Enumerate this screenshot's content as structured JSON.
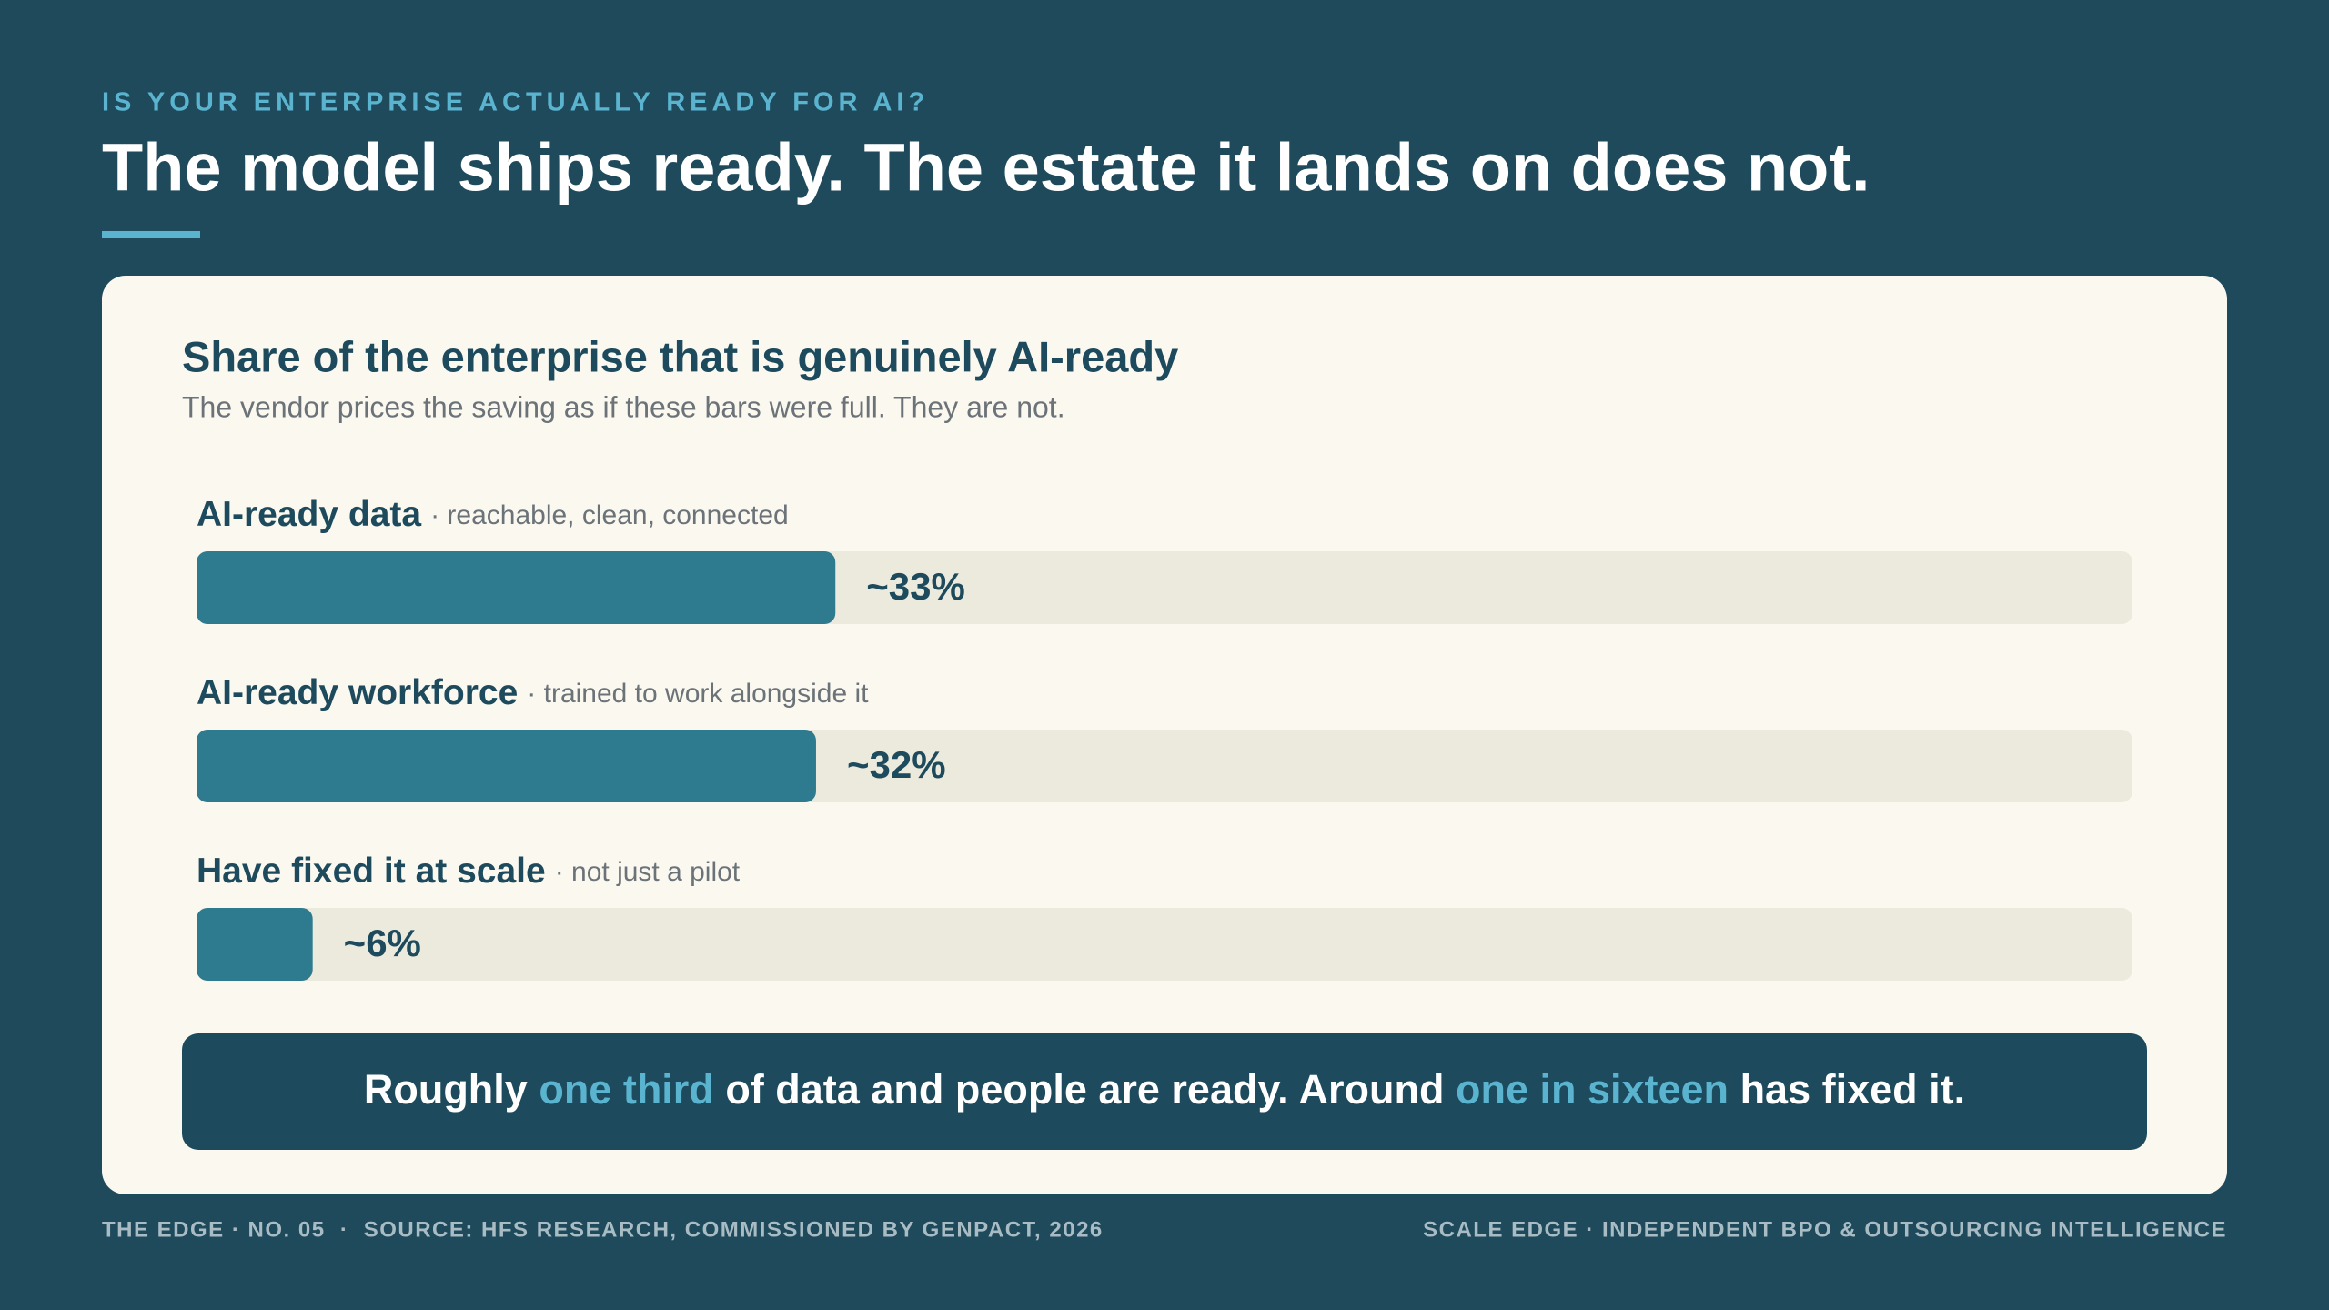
{
  "header": {
    "kicker": "IS YOUR ENTERPRISE ACTUALLY READY FOR AI?",
    "title": "The model ships ready. The estate it lands on does not."
  },
  "chart_data": {
    "type": "bar",
    "orientation": "horizontal",
    "title": "Share of the enterprise that is genuinely AI-ready",
    "subtitle": "The vendor prices the saving as if these bars were full. They are not.",
    "categories": [
      "AI-ready data",
      "AI-ready workforce",
      "Have fixed it at scale"
    ],
    "descriptions": [
      "· reachable, clean, connected",
      "· trained to work alongside it",
      "· not just a pilot"
    ],
    "values": [
      33,
      32,
      6
    ],
    "value_labels": [
      "~33%",
      "~32%",
      "~6%"
    ],
    "xlim": [
      0,
      100
    ],
    "color": "#2e7a8e",
    "track_color": "#ece9dd",
    "grid": false
  },
  "callout": {
    "parts": [
      {
        "text": "Roughly ",
        "highlight": false
      },
      {
        "text": "one third",
        "highlight": true
      },
      {
        "text": " of data and people are ready. Around ",
        "highlight": false
      },
      {
        "text": "one in sixteen",
        "highlight": true
      },
      {
        "text": " has fixed it.",
        "highlight": false
      }
    ]
  },
  "footer": {
    "left": "THE EDGE · NO. 05  ·  SOURCE: HFS RESEARCH, COMMISSIONED BY GENPACT, 2026",
    "right": "SCALE EDGE · INDEPENDENT BPO & OUTSOURCING INTELLIGENCE"
  }
}
